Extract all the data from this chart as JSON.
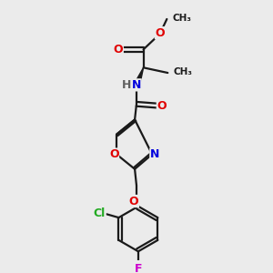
{
  "bg_color": "#ebebeb",
  "bond_color": "#1a1a1a",
  "atom_colors": {
    "O": "#e00000",
    "N": "#0000dd",
    "Cl": "#22aa22",
    "F": "#cc00cc",
    "H": "#606060",
    "C": "#1a1a1a"
  },
  "figsize": [
    3.0,
    3.0
  ],
  "dpi": 100
}
